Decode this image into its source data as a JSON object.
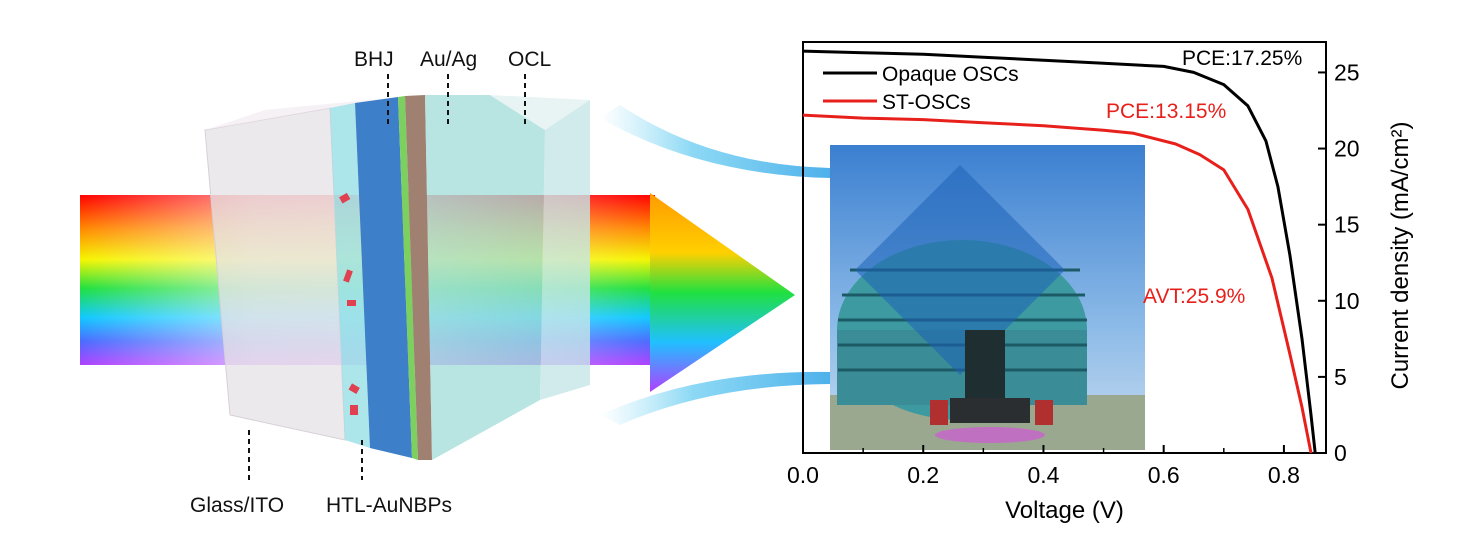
{
  "diagram": {
    "labels": {
      "bhj": "BHJ",
      "au_ag": "Au/Ag",
      "ocl": "OCL",
      "glass_ito": "Glass/ITO",
      "htl": "HTL-AuNBPs"
    },
    "spectrum_colors": [
      "#ff0000",
      "#ff8000",
      "#ffff00",
      "#00e000",
      "#00c0ff",
      "#4060ff",
      "#a040ff"
    ]
  },
  "chart_data": {
    "type": "line",
    "title": "",
    "xlabel": "Voltage (V)",
    "ylabel": "Current density (mA/cm²)",
    "xlim": [
      0.0,
      0.87
    ],
    "ylim": [
      0,
      27
    ],
    "xticks": [
      "0.0",
      "0.2",
      "0.4",
      "0.6",
      "0.8"
    ],
    "xtick_values": [
      0.0,
      0.2,
      0.4,
      0.6,
      0.8
    ],
    "yticks": [
      "0",
      "5",
      "10",
      "15",
      "20",
      "25"
    ],
    "ytick_values": [
      0,
      5,
      10,
      15,
      20,
      25
    ],
    "y_axis_side": "right",
    "grid": false,
    "legend_placement": "top-left",
    "series": [
      {
        "name": "Opaque OSCs",
        "color": "#000000",
        "x": [
          0,
          0.1,
          0.2,
          0.3,
          0.4,
          0.5,
          0.6,
          0.65,
          0.7,
          0.74,
          0.77,
          0.79,
          0.81,
          0.83,
          0.845,
          0.852
        ],
        "y": [
          26.4,
          26.3,
          26.2,
          26.0,
          25.8,
          25.6,
          25.4,
          25.0,
          24.2,
          22.8,
          20.5,
          17.5,
          13.0,
          7.5,
          2.5,
          0
        ]
      },
      {
        "name": "ST-OSCs",
        "color": "#e8201c",
        "x": [
          0,
          0.1,
          0.2,
          0.3,
          0.4,
          0.5,
          0.55,
          0.62,
          0.66,
          0.7,
          0.74,
          0.78,
          0.81,
          0.83,
          0.845
        ],
        "y": [
          22.2,
          22.0,
          21.9,
          21.7,
          21.5,
          21.2,
          21.0,
          20.3,
          19.6,
          18.6,
          16.0,
          11.5,
          6.5,
          3.0,
          0
        ]
      }
    ],
    "annotations": [
      {
        "text": "PCE:17.25%",
        "color": "#000000"
      },
      {
        "text": "PCE:13.15%",
        "color": "#e8201c"
      },
      {
        "text": "AVT:25.9%",
        "color": "#e8201c"
      }
    ]
  }
}
